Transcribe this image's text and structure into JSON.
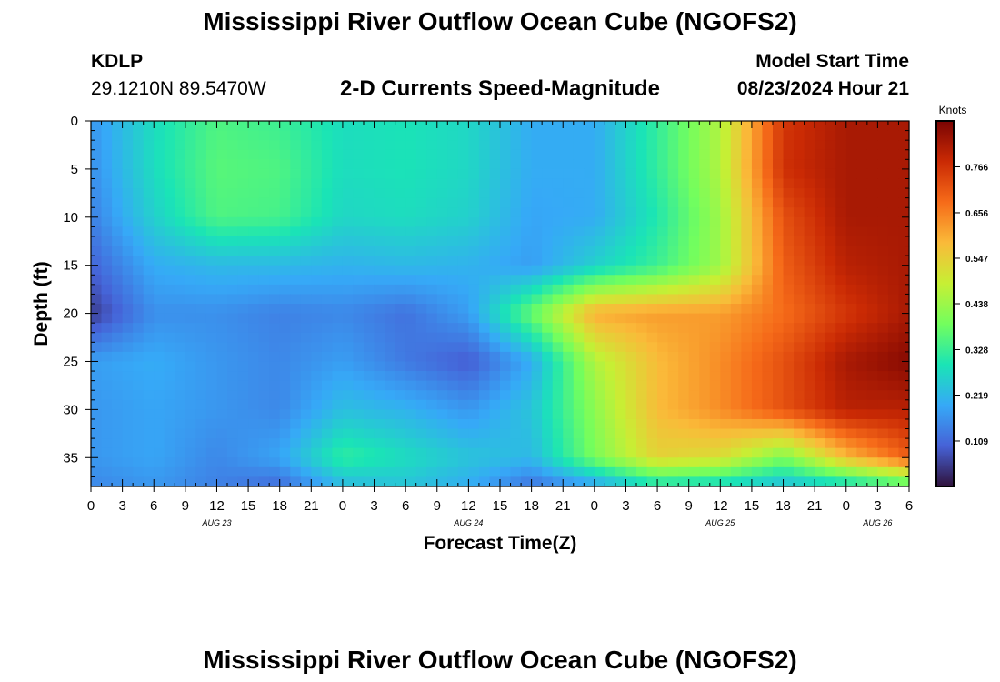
{
  "header": {
    "title": "Mississippi River Outflow Ocean Cube (NGOFS2)",
    "station": "KDLP",
    "coords": "29.1210N  89.5470W",
    "subtitle": "2-D Currents Speed-Magnitude",
    "model_start_label": "Model Start Time",
    "model_start_value": "08/23/2024 Hour 21"
  },
  "footer": {
    "title": "Mississippi River Outflow Ocean Cube (NGOFS2)"
  },
  "chart_data": {
    "type": "heatmap",
    "title": "2-D Currents Speed-Magnitude",
    "xlabel": "Forecast Time(Z)",
    "ylabel": "Depth (ft)",
    "x_range_hours": [
      0,
      78
    ],
    "x_tick_labels": [
      "0",
      "3",
      "6",
      "9",
      "12",
      "15",
      "18",
      "21",
      "0",
      "3",
      "6",
      "9",
      "12",
      "15",
      "18",
      "21",
      "0",
      "3",
      "6",
      "9",
      "12",
      "15",
      "18",
      "21",
      "0",
      "3",
      "6"
    ],
    "date_labels": [
      {
        "label": "AUG 23",
        "hour": 12
      },
      {
        "label": "AUG 24",
        "hour": 36
      },
      {
        "label": "AUG 25",
        "hour": 60
      },
      {
        "label": "AUG 26",
        "hour": 75
      }
    ],
    "y_ticks": [
      0,
      5,
      10,
      15,
      20,
      25,
      30,
      35
    ],
    "ylim": [
      0,
      38
    ],
    "y_inverted": true,
    "colorbar": {
      "label": "Knots",
      "range": [
        0,
        0.876
      ],
      "ticks": [
        "0.109",
        "0.219",
        "0.328",
        "0.438",
        "0.547",
        "0.656",
        "0.766"
      ],
      "colormap": [
        "#30123b",
        "#4662d7",
        "#36a9f7",
        "#1ae4b6",
        "#72fe5e",
        "#c7ef34",
        "#faba39",
        "#f66b19",
        "#ca2a04",
        "#7a0403"
      ]
    },
    "grid_hours": [
      0,
      6,
      12,
      18,
      24,
      30,
      36,
      42,
      48,
      54,
      60,
      66,
      72,
      78
    ],
    "grid_depths": [
      0,
      5,
      10,
      15,
      20,
      25,
      30,
      35,
      38
    ],
    "values": [
      [
        0.17,
        0.28,
        0.35,
        0.33,
        0.28,
        0.29,
        0.27,
        0.2,
        0.2,
        0.32,
        0.46,
        0.76,
        0.82,
        0.82
      ],
      [
        0.16,
        0.28,
        0.36,
        0.35,
        0.28,
        0.29,
        0.27,
        0.2,
        0.2,
        0.32,
        0.46,
        0.77,
        0.82,
        0.82
      ],
      [
        0.14,
        0.26,
        0.35,
        0.34,
        0.27,
        0.28,
        0.26,
        0.19,
        0.2,
        0.3,
        0.44,
        0.72,
        0.82,
        0.82
      ],
      [
        0.1,
        0.2,
        0.22,
        0.22,
        0.21,
        0.22,
        0.21,
        0.18,
        0.26,
        0.33,
        0.44,
        0.7,
        0.8,
        0.82
      ],
      [
        0.05,
        0.16,
        0.16,
        0.14,
        0.15,
        0.12,
        0.18,
        0.38,
        0.6,
        0.62,
        0.62,
        0.68,
        0.76,
        0.82
      ],
      [
        0.18,
        0.2,
        0.17,
        0.15,
        0.18,
        0.13,
        0.09,
        0.2,
        0.46,
        0.58,
        0.64,
        0.72,
        0.82,
        0.86
      ],
      [
        0.17,
        0.19,
        0.17,
        0.15,
        0.23,
        0.21,
        0.17,
        0.24,
        0.42,
        0.58,
        0.64,
        0.72,
        0.8,
        0.8
      ],
      [
        0.17,
        0.19,
        0.15,
        0.19,
        0.32,
        0.28,
        0.24,
        0.22,
        0.4,
        0.54,
        0.52,
        0.4,
        0.58,
        0.7
      ],
      [
        0.15,
        0.17,
        0.14,
        0.11,
        0.22,
        0.24,
        0.2,
        0.12,
        0.18,
        0.28,
        0.26,
        0.22,
        0.26,
        0.34
      ]
    ]
  }
}
